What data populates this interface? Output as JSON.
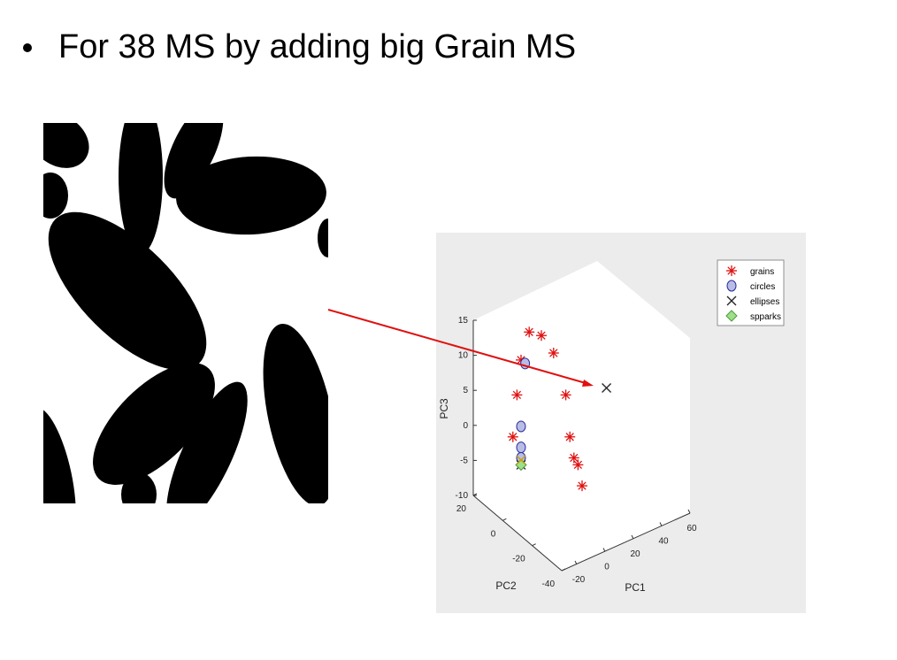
{
  "slide": {
    "bullet_text": "For 38 MS by adding big Grain MS"
  },
  "colors": {
    "grain_marker": "#e01010",
    "circle_fill": "#b9bde6",
    "circle_edge": "#2b2f9a",
    "ellipse_marker": "#222222",
    "spparks_fill": "#9ee08a",
    "arrow": "#e01010",
    "plot_background": "#ececec"
  },
  "chart_data": {
    "type": "scatter",
    "projection": "3d",
    "xlabel": "PC1",
    "ylabel": "PC2",
    "zlabel": "PC3",
    "xlim": [
      -20,
      60
    ],
    "ylim": [
      -40,
      20
    ],
    "zlim": [
      -10,
      15
    ],
    "x_ticks": [
      "-20",
      "0",
      "20",
      "40",
      "60"
    ],
    "y_ticks": [
      "-40",
      "-20",
      "0",
      "20"
    ],
    "z_ticks": [
      "-10",
      "-5",
      "0",
      "5",
      "10",
      "15"
    ],
    "legend_position": "top-right",
    "series": [
      {
        "name": "grains",
        "marker": "asterisk",
        "points_xz": [
          [
            -8,
            13
          ],
          [
            -2,
            12.5
          ],
          [
            4,
            10
          ],
          [
            -12,
            9
          ],
          [
            10,
            4
          ],
          [
            -14,
            4
          ],
          [
            12,
            -2
          ],
          [
            -16,
            -2
          ],
          [
            14,
            -5
          ],
          [
            16,
            -6
          ],
          [
            18,
            -9
          ]
        ]
      },
      {
        "name": "circles",
        "marker": "circle",
        "points_xz": [
          [
            -10,
            8.5
          ],
          [
            -12,
            -0.5
          ],
          [
            -12,
            -3.5
          ],
          [
            -12,
            -5
          ]
        ]
      },
      {
        "name": "ellipses",
        "marker": "x",
        "points_xz": [
          [
            30,
            5
          ],
          [
            -12,
            -6
          ]
        ]
      },
      {
        "name": "spparks",
        "marker": "diamond",
        "points_xz": [
          [
            -12,
            -6
          ]
        ]
      }
    ]
  }
}
